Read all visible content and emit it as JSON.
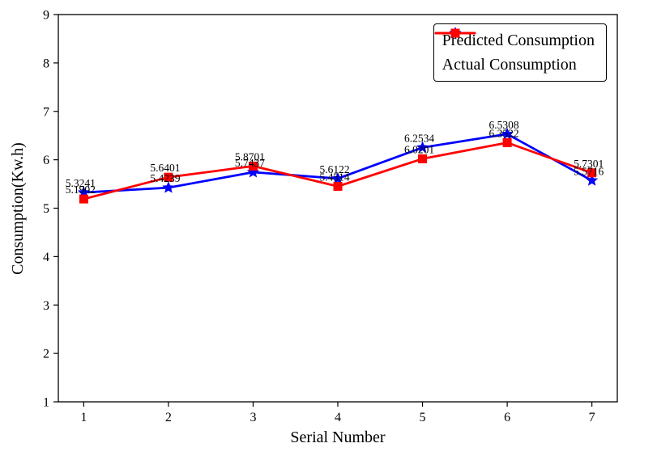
{
  "figure": {
    "background": "#ffffff",
    "text_color": "#000000",
    "axis_color": "#000000"
  },
  "axes": {
    "xlabel": "Serial Number",
    "ylabel": "Consumption(Kw.h)"
  },
  "legend": {
    "position": "upper right",
    "border_color": "#000000",
    "items": [
      {
        "label": "Predicted Consumption",
        "marker": "star-icon",
        "color": "#0000ff"
      },
      {
        "label": "Actual Consumption",
        "marker": "square-icon",
        "color": "#ff0000"
      }
    ]
  },
  "chart_data": {
    "type": "line",
    "title": "",
    "xlabel": "Serial Number",
    "ylabel": "Consumption(Kw.h)",
    "x": [
      1,
      2,
      3,
      4,
      5,
      6,
      7
    ],
    "xticks": [
      1,
      2,
      3,
      4,
      5,
      6,
      7
    ],
    "yticks": [
      1,
      2,
      3,
      4,
      5,
      6,
      7,
      8,
      9
    ],
    "xlim": [
      0.7,
      7.3
    ],
    "ylim": [
      1,
      9
    ],
    "grid": false,
    "legend_position": "upper right",
    "label_decimals": 4,
    "point_labels_visible": true,
    "series": [
      {
        "name": "Predicted Consumption",
        "color": "#0000ff",
        "marker": "star",
        "values": [
          5.3241,
          5.4239,
          5.7437,
          5.6122,
          6.2534,
          6.5308,
          5.5716
        ]
      },
      {
        "name": "Actual Consumption",
        "color": "#ff0000",
        "marker": "square",
        "values": [
          5.1902,
          5.6401,
          5.8701,
          5.4514,
          6.0201,
          6.3522,
          5.7301
        ]
      }
    ]
  }
}
